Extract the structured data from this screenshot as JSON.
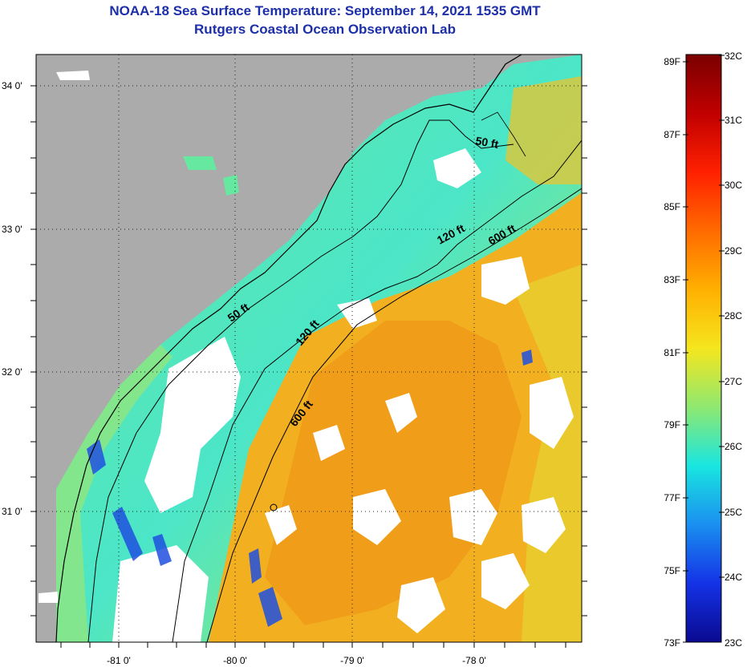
{
  "title": {
    "line1": "NOAA-18 Sea Surface Temperature:  September 14, 2021 1535 GMT",
    "line2": "Rutgers Coastal Ocean Observation Lab"
  },
  "map": {
    "lat_labels": [
      "34 0'",
      "33 0'",
      "32 0'",
      "31 0'"
    ],
    "lon_labels": [
      "-81 0'",
      "-80 0'",
      "-79 0'",
      "-78 0'"
    ],
    "contours": [
      {
        "label": "50 ft"
      },
      {
        "label": "50 ft"
      },
      {
        "label": "120 ft"
      },
      {
        "label": "120 ft"
      },
      {
        "label": "600 ft"
      },
      {
        "label": "600 ft"
      }
    ]
  },
  "colorbar": {
    "fahrenheit": [
      "89F",
      "87F",
      "85F",
      "83F",
      "81F",
      "79F",
      "77F",
      "75F",
      "73F"
    ],
    "celsius": [
      "32C",
      "31C",
      "30C",
      "29C",
      "28C",
      "27C",
      "26C",
      "25C",
      "24C",
      "23C"
    ],
    "colors": [
      "#7a0000",
      "#c00000",
      "#ff2000",
      "#ff6a00",
      "#ffb000",
      "#f5e61e",
      "#8fe870",
      "#19e6e0",
      "#1a8ff0",
      "#1432e6",
      "#0a0a90"
    ]
  }
}
